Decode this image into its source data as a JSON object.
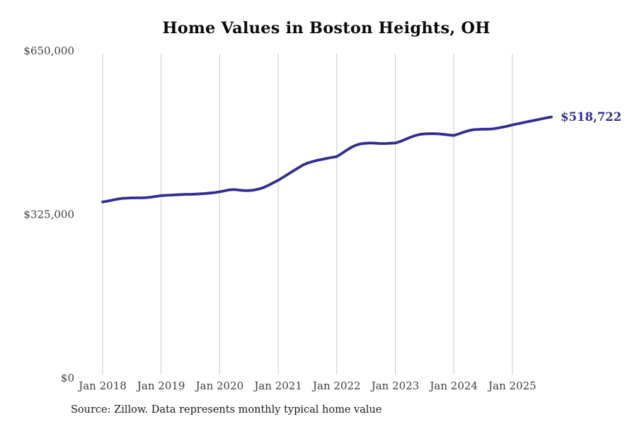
{
  "page": {
    "title": "Home Values in Boston Heights, OH",
    "source_note": "Source: Zillow. Data represents monthly typical home value"
  },
  "colors": {
    "line": "#322d91",
    "gridline": "#c9c9c9",
    "tick_text": "#3d3d3d",
    "title_text": "#0b0b0b",
    "background": "#ffffff"
  },
  "chart_data": {
    "type": "line",
    "title": "Home Values in Boston Heights, OH",
    "xlabel": "",
    "ylabel": "",
    "unit": "USD",
    "legend": "none",
    "gridlines": "vertical-yearly",
    "x_axis": {
      "start": "Jan 2018",
      "interval": "monthly",
      "tick_labels": [
        "Jan 2018",
        "Jan 2019",
        "Jan 2020",
        "Jan 2021",
        "Jan 2022",
        "Jan 2023",
        "Jan 2024",
        "Jan 2025"
      ]
    },
    "y_axis": {
      "range": [
        0,
        650000
      ],
      "ticks": [
        {
          "label": "$0",
          "value": 0
        },
        {
          "label": "$325,000",
          "value": 325000
        },
        {
          "label": "$650,000",
          "value": 650000
        }
      ]
    },
    "series": [
      {
        "name": "Typical home value",
        "start_month": "Jan 2018",
        "end_month": "Sep 2025",
        "values": [
          350000,
          351500,
          353500,
          355500,
          357000,
          357500,
          358000,
          358000,
          358000,
          358500,
          359500,
          361000,
          362500,
          363000,
          363500,
          364000,
          364500,
          365000,
          365000,
          365500,
          366000,
          366500,
          367500,
          368500,
          370000,
          372000,
          374000,
          374500,
          373500,
          372500,
          372500,
          373500,
          375500,
          378500,
          383000,
          388000,
          393000,
          399000,
          405000,
          411000,
          417000,
          423000,
          427000,
          430000,
          432500,
          434500,
          436500,
          438500,
          440000,
          446000,
          452500,
          458500,
          463000,
          465500,
          466500,
          467000,
          466500,
          466000,
          466000,
          466500,
          467000,
          470000,
          474000,
          478000,
          481500,
          484000,
          485000,
          485500,
          485500,
          485000,
          484000,
          483000,
          482000,
          485000,
          488500,
          491500,
          493500,
          494000,
          494500,
          494500,
          495000,
          496500,
          498500,
          500500,
          503000,
          505000,
          507000,
          509000,
          511000,
          513000,
          515000,
          517000,
          518722
        ]
      }
    ],
    "final_value": 518722,
    "end_label": "$518,722"
  }
}
